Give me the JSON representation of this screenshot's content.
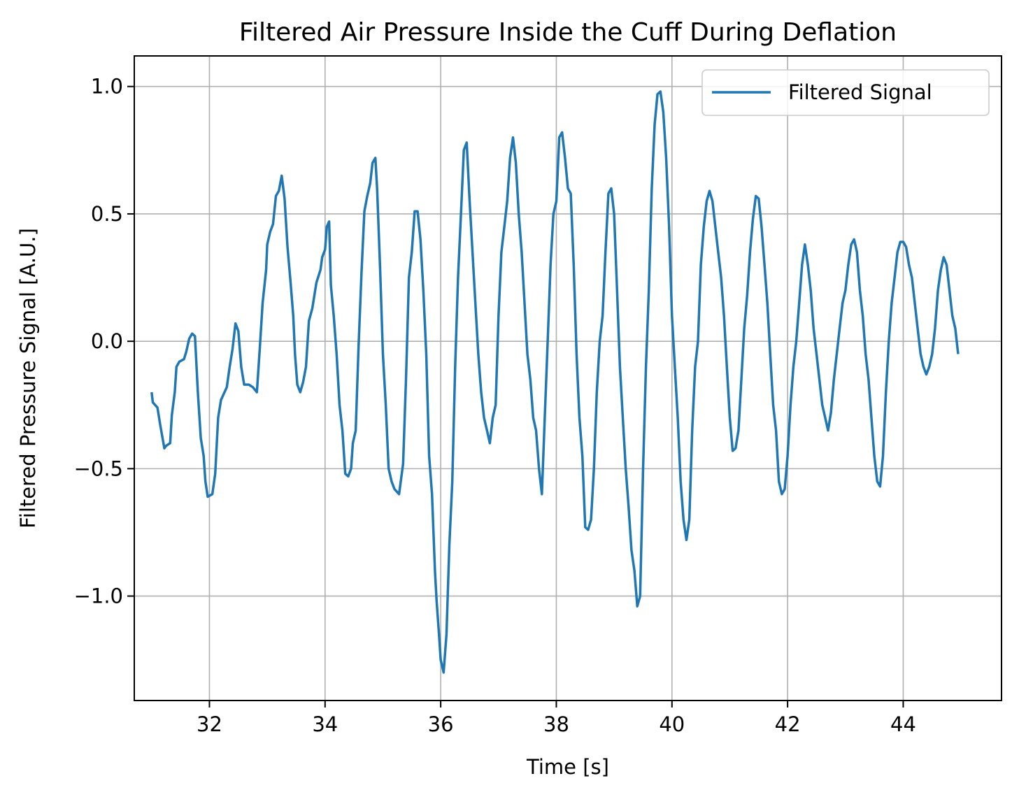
{
  "chart_data": {
    "type": "line",
    "title": "Filtered Air Pressure Inside the Cuff During Deflation",
    "xlabel": "Time [s]",
    "ylabel": "Filtered Pressure Signal [A.U.]",
    "xlim": [
      30.7,
      45.7
    ],
    "ylim": [
      -1.41,
      1.12
    ],
    "xticks": [
      32,
      34,
      36,
      38,
      40,
      42,
      44
    ],
    "xtick_labels": [
      "32",
      "34",
      "36",
      "38",
      "40",
      "42",
      "44"
    ],
    "yticks": [
      1.0,
      0.5,
      0.0,
      -0.5,
      -1.0
    ],
    "ytick_labels": [
      "1.0",
      "0.5",
      "0.0",
      "−0.5",
      "−1.0"
    ],
    "grid": true,
    "legend_position": "top-right",
    "series": [
      {
        "name": "Filtered Signal",
        "color": "#1f77b4",
        "points": [
          [
            31.0,
            -0.2
          ],
          [
            31.02,
            -0.24
          ],
          [
            31.1,
            -0.26
          ],
          [
            31.15,
            -0.33
          ],
          [
            31.22,
            -0.42
          ],
          [
            31.25,
            -0.41
          ],
          [
            31.32,
            -0.4
          ],
          [
            31.35,
            -0.29
          ],
          [
            31.4,
            -0.2
          ],
          [
            31.43,
            -0.1
          ],
          [
            31.48,
            -0.08
          ],
          [
            31.56,
            -0.07
          ],
          [
            31.6,
            -0.04
          ],
          [
            31.65,
            0.01
          ],
          [
            31.7,
            0.03
          ],
          [
            31.75,
            0.02
          ],
          [
            31.8,
            -0.2
          ],
          [
            31.85,
            -0.38
          ],
          [
            31.9,
            -0.45
          ],
          [
            31.93,
            -0.55
          ],
          [
            31.97,
            -0.61
          ],
          [
            32.05,
            -0.6
          ],
          [
            32.1,
            -0.52
          ],
          [
            32.15,
            -0.3
          ],
          [
            32.2,
            -0.23
          ],
          [
            32.3,
            -0.18
          ],
          [
            32.35,
            -0.1
          ],
          [
            32.4,
            -0.03
          ],
          [
            32.45,
            0.07
          ],
          [
            32.5,
            0.04
          ],
          [
            32.55,
            -0.1
          ],
          [
            32.6,
            -0.17
          ],
          [
            32.68,
            -0.17
          ],
          [
            32.75,
            -0.18
          ],
          [
            32.82,
            -0.2
          ],
          [
            32.87,
            -0.03
          ],
          [
            32.92,
            0.15
          ],
          [
            32.98,
            0.28
          ],
          [
            33.0,
            0.38
          ],
          [
            33.05,
            0.43
          ],
          [
            33.1,
            0.46
          ],
          [
            33.15,
            0.57
          ],
          [
            33.2,
            0.59
          ],
          [
            33.25,
            0.65
          ],
          [
            33.3,
            0.56
          ],
          [
            33.35,
            0.37
          ],
          [
            33.4,
            0.24
          ],
          [
            33.45,
            0.1
          ],
          [
            33.48,
            -0.05
          ],
          [
            33.52,
            -0.17
          ],
          [
            33.57,
            -0.2
          ],
          [
            33.62,
            -0.16
          ],
          [
            33.67,
            -0.1
          ],
          [
            33.72,
            0.08
          ],
          [
            33.78,
            0.13
          ],
          [
            33.85,
            0.23
          ],
          [
            33.92,
            0.28
          ],
          [
            33.95,
            0.33
          ],
          [
            34.0,
            0.36
          ],
          [
            34.03,
            0.45
          ],
          [
            34.07,
            0.47
          ],
          [
            34.1,
            0.22
          ],
          [
            34.15,
            0.1
          ],
          [
            34.2,
            -0.05
          ],
          [
            34.25,
            -0.25
          ],
          [
            34.3,
            -0.35
          ],
          [
            34.35,
            -0.52
          ],
          [
            34.4,
            -0.53
          ],
          [
            34.45,
            -0.5
          ],
          [
            34.48,
            -0.4
          ],
          [
            34.53,
            -0.35
          ],
          [
            34.58,
            -0.02
          ],
          [
            34.63,
            0.27
          ],
          [
            34.68,
            0.51
          ],
          [
            34.73,
            0.57
          ],
          [
            34.78,
            0.62
          ],
          [
            34.82,
            0.7
          ],
          [
            34.87,
            0.72
          ],
          [
            34.9,
            0.6
          ],
          [
            34.95,
            0.3
          ],
          [
            35.0,
            -0.05
          ],
          [
            35.05,
            -0.25
          ],
          [
            35.1,
            -0.5
          ],
          [
            35.15,
            -0.55
          ],
          [
            35.2,
            -0.58
          ],
          [
            35.28,
            -0.6
          ],
          [
            35.35,
            -0.48
          ],
          [
            35.4,
            -0.15
          ],
          [
            35.45,
            0.25
          ],
          [
            35.5,
            0.35
          ],
          [
            35.55,
            0.51
          ],
          [
            35.6,
            0.51
          ],
          [
            35.65,
            0.4
          ],
          [
            35.7,
            0.2
          ],
          [
            35.75,
            -0.05
          ],
          [
            35.8,
            -0.45
          ],
          [
            35.85,
            -0.6
          ],
          [
            35.9,
            -0.9
          ],
          [
            35.93,
            -1.02
          ],
          [
            35.97,
            -1.15
          ],
          [
            36.0,
            -1.25
          ],
          [
            36.05,
            -1.3
          ],
          [
            36.1,
            -1.15
          ],
          [
            36.15,
            -0.8
          ],
          [
            36.2,
            -0.55
          ],
          [
            36.25,
            -0.1
          ],
          [
            36.3,
            0.25
          ],
          [
            36.35,
            0.5
          ],
          [
            36.4,
            0.75
          ],
          [
            36.45,
            0.78
          ],
          [
            36.5,
            0.55
          ],
          [
            36.55,
            0.35
          ],
          [
            36.6,
            0.15
          ],
          [
            36.65,
            -0.05
          ],
          [
            36.7,
            -0.2
          ],
          [
            36.75,
            -0.3
          ],
          [
            36.8,
            -0.35
          ],
          [
            36.85,
            -0.4
          ],
          [
            36.9,
            -0.3
          ],
          [
            36.95,
            -0.25
          ],
          [
            37.0,
            0.1
          ],
          [
            37.05,
            0.35
          ],
          [
            37.1,
            0.45
          ],
          [
            37.15,
            0.55
          ],
          [
            37.2,
            0.72
          ],
          [
            37.25,
            0.8
          ],
          [
            37.3,
            0.7
          ],
          [
            37.35,
            0.5
          ],
          [
            37.4,
            0.35
          ],
          [
            37.45,
            0.15
          ],
          [
            37.5,
            -0.05
          ],
          [
            37.55,
            -0.15
          ],
          [
            37.6,
            -0.3
          ],
          [
            37.65,
            -0.35
          ],
          [
            37.7,
            -0.5
          ],
          [
            37.75,
            -0.6
          ],
          [
            37.8,
            -0.3
          ],
          [
            37.85,
            0.0
          ],
          [
            37.9,
            0.3
          ],
          [
            37.95,
            0.5
          ],
          [
            38.0,
            0.55
          ],
          [
            38.05,
            0.8
          ],
          [
            38.1,
            0.82
          ],
          [
            38.15,
            0.72
          ],
          [
            38.2,
            0.6
          ],
          [
            38.25,
            0.58
          ],
          [
            38.3,
            0.3
          ],
          [
            38.35,
            -0.05
          ],
          [
            38.4,
            -0.3
          ],
          [
            38.45,
            -0.45
          ],
          [
            38.5,
            -0.73
          ],
          [
            38.55,
            -0.74
          ],
          [
            38.6,
            -0.7
          ],
          [
            38.65,
            -0.5
          ],
          [
            38.7,
            -0.2
          ],
          [
            38.75,
            0.0
          ],
          [
            38.8,
            0.1
          ],
          [
            38.85,
            0.35
          ],
          [
            38.9,
            0.58
          ],
          [
            38.95,
            0.6
          ],
          [
            39.0,
            0.5
          ],
          [
            39.05,
            0.2
          ],
          [
            39.1,
            -0.1
          ],
          [
            39.15,
            -0.3
          ],
          [
            39.2,
            -0.5
          ],
          [
            39.25,
            -0.65
          ],
          [
            39.3,
            -0.82
          ],
          [
            39.35,
            -0.9
          ],
          [
            39.4,
            -1.04
          ],
          [
            39.45,
            -1.0
          ],
          [
            39.5,
            -0.5
          ],
          [
            39.55,
            -0.1
          ],
          [
            39.6,
            0.2
          ],
          [
            39.65,
            0.6
          ],
          [
            39.7,
            0.85
          ],
          [
            39.75,
            0.97
          ],
          [
            39.8,
            0.98
          ],
          [
            39.85,
            0.9
          ],
          [
            39.9,
            0.72
          ],
          [
            39.95,
            0.45
          ],
          [
            40.0,
            0.1
          ],
          [
            40.05,
            -0.1
          ],
          [
            40.1,
            -0.3
          ],
          [
            40.15,
            -0.55
          ],
          [
            40.2,
            -0.7
          ],
          [
            40.25,
            -0.78
          ],
          [
            40.3,
            -0.7
          ],
          [
            40.35,
            -0.35
          ],
          [
            40.4,
            -0.1
          ],
          [
            40.45,
            0.0
          ],
          [
            40.5,
            0.3
          ],
          [
            40.55,
            0.45
          ],
          [
            40.6,
            0.55
          ],
          [
            40.65,
            0.59
          ],
          [
            40.7,
            0.55
          ],
          [
            40.75,
            0.45
          ],
          [
            40.8,
            0.35
          ],
          [
            40.85,
            0.25
          ],
          [
            40.9,
            0.1
          ],
          [
            40.95,
            -0.1
          ],
          [
            41.0,
            -0.3
          ],
          [
            41.05,
            -0.43
          ],
          [
            41.1,
            -0.42
          ],
          [
            41.15,
            -0.35
          ],
          [
            41.2,
            -0.15
          ],
          [
            41.25,
            0.05
          ],
          [
            41.3,
            0.18
          ],
          [
            41.35,
            0.35
          ],
          [
            41.4,
            0.48
          ],
          [
            41.45,
            0.57
          ],
          [
            41.5,
            0.56
          ],
          [
            41.55,
            0.45
          ],
          [
            41.6,
            0.3
          ],
          [
            41.65,
            0.15
          ],
          [
            41.7,
            -0.05
          ],
          [
            41.75,
            -0.25
          ],
          [
            41.8,
            -0.35
          ],
          [
            41.85,
            -0.55
          ],
          [
            41.9,
            -0.6
          ],
          [
            41.95,
            -0.58
          ],
          [
            42.0,
            -0.45
          ],
          [
            42.05,
            -0.25
          ],
          [
            42.1,
            -0.1
          ],
          [
            42.15,
            0.0
          ],
          [
            42.2,
            0.15
          ],
          [
            42.25,
            0.3
          ],
          [
            42.3,
            0.38
          ],
          [
            42.35,
            0.3
          ],
          [
            42.4,
            0.2
          ],
          [
            42.45,
            0.05
          ],
          [
            42.5,
            -0.05
          ],
          [
            42.55,
            -0.15
          ],
          [
            42.6,
            -0.25
          ],
          [
            42.65,
            -0.3
          ],
          [
            42.7,
            -0.35
          ],
          [
            42.75,
            -0.28
          ],
          [
            42.8,
            -0.15
          ],
          [
            42.85,
            -0.05
          ],
          [
            42.9,
            0.05
          ],
          [
            42.95,
            0.15
          ],
          [
            43.0,
            0.2
          ],
          [
            43.05,
            0.3
          ],
          [
            43.1,
            0.38
          ],
          [
            43.15,
            0.4
          ],
          [
            43.2,
            0.35
          ],
          [
            43.25,
            0.2
          ],
          [
            43.3,
            0.1
          ],
          [
            43.35,
            -0.05
          ],
          [
            43.4,
            -0.15
          ],
          [
            43.45,
            -0.3
          ],
          [
            43.5,
            -0.45
          ],
          [
            43.55,
            -0.55
          ],
          [
            43.6,
            -0.57
          ],
          [
            43.65,
            -0.45
          ],
          [
            43.7,
            -0.2
          ],
          [
            43.75,
            0.0
          ],
          [
            43.8,
            0.15
          ],
          [
            43.85,
            0.25
          ],
          [
            43.9,
            0.35
          ],
          [
            43.95,
            0.39
          ],
          [
            44.0,
            0.39
          ],
          [
            44.05,
            0.37
          ],
          [
            44.1,
            0.3
          ],
          [
            44.15,
            0.25
          ],
          [
            44.2,
            0.15
          ],
          [
            44.25,
            0.05
          ],
          [
            44.3,
            -0.05
          ],
          [
            44.35,
            -0.1
          ],
          [
            44.4,
            -0.13
          ],
          [
            44.45,
            -0.1
          ],
          [
            44.5,
            -0.05
          ],
          [
            44.55,
            0.05
          ],
          [
            44.6,
            0.2
          ],
          [
            44.65,
            0.28
          ],
          [
            44.7,
            0.33
          ],
          [
            44.75,
            0.3
          ],
          [
            44.8,
            0.2
          ],
          [
            44.85,
            0.1
          ],
          [
            44.9,
            0.05
          ],
          [
            44.95,
            -0.05
          ]
        ]
      }
    ]
  }
}
